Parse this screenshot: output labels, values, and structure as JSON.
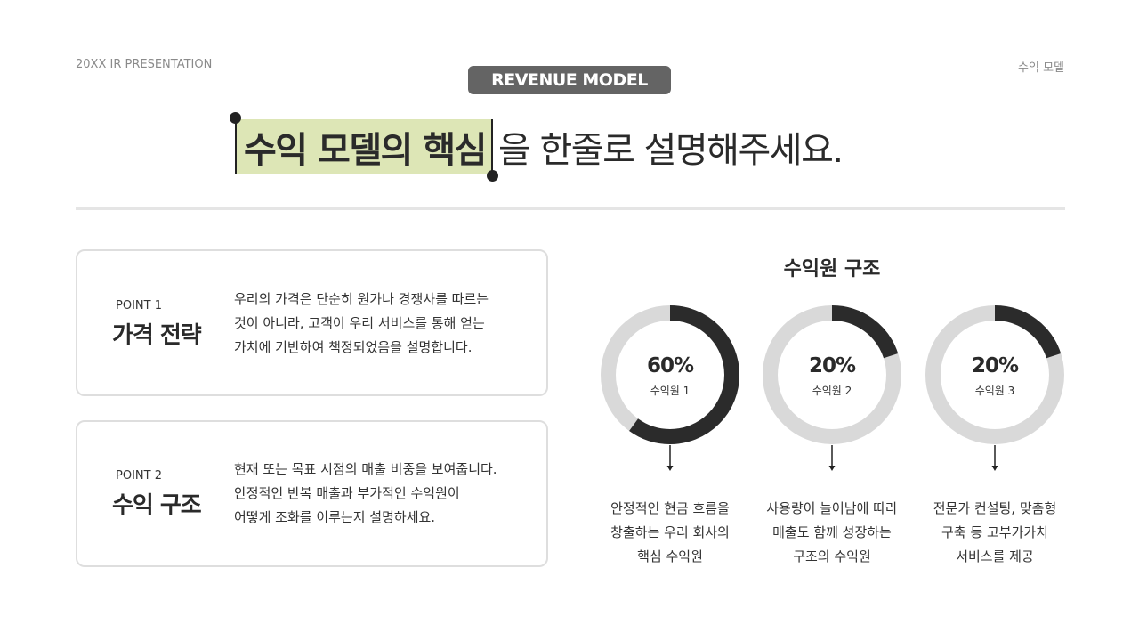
{
  "header": {
    "left": "20XX IR PRESENTATION",
    "right": "수익 모델"
  },
  "badge": "REVENUE MODEL",
  "title": {
    "highlight": "수익 모델의 핵심",
    "rest": "을 한줄로 설명해주세요."
  },
  "points": [
    {
      "label": "POINT 1",
      "heading": "가격 전략",
      "desc": "우리의 가격은 단순히 원가나 경쟁사를 따르는\n것이 아니라, 고객이 우리 서비스를 통해 얻는\n가치에 기반하여 책정되었음을 설명합니다."
    },
    {
      "label": "POINT 2",
      "heading": "수익 구조",
      "desc": "현재 또는 목표 시점의 매출 비중을 보여줍니다.\n안정적인 반복 매출과 부가적인 수익원이\n어떻게 조화를 이루는지 설명하세요."
    }
  ],
  "colors": {
    "accent": "#2b2b2b",
    "track": "#d9d9d9",
    "highlight": "#dde6b6",
    "badge": "#646464"
  },
  "chart_data": {
    "type": "pie",
    "title": "수익원 구조",
    "series": [
      {
        "name": "수익원 1",
        "value": 60,
        "label": "60%",
        "caption": "안정적인 현금 흐름을\n창출하는 우리 회사의\n핵심 수익원"
      },
      {
        "name": "수익원 2",
        "value": 20,
        "label": "20%",
        "caption": "사용량이 늘어남에 따라\n매출도 함께 성장하는\n구조의 수익원"
      },
      {
        "name": "수익원 3",
        "value": 20,
        "label": "20%",
        "caption": "전문가 컨설팅, 맞춤형\n구축 등 고부가가치\n서비스를 제공"
      }
    ]
  }
}
